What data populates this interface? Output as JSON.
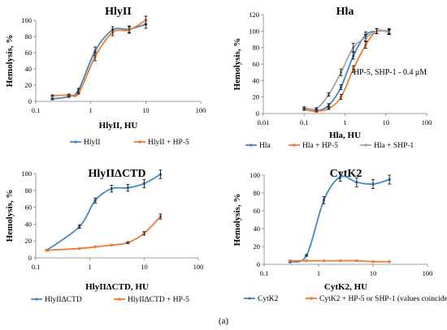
{
  "caption": "(a)",
  "colors": {
    "blue": "#4a86c7",
    "orange": "#ed7d31",
    "gray": "#a5a5a5",
    "axis": "#7f7f7f"
  },
  "chart_data": [
    {
      "type": "line",
      "title": "HlyII",
      "xlabel": "HlyII, HU",
      "ylabel": "Hemolysis, %",
      "xscale": "log",
      "xlim": [
        0.1,
        100
      ],
      "ylim": [
        0,
        100
      ],
      "xticks": [
        "0.1",
        "1",
        "10",
        "100"
      ],
      "yticks": [
        "0",
        "20",
        "40",
        "60",
        "80",
        "100"
      ],
      "legend": "bottom",
      "series": [
        {
          "name": "HlyII",
          "color": "blue",
          "x": [
            0.2,
            0.4,
            0.6,
            1.2,
            2.5,
            5,
            10
          ],
          "y": [
            3,
            6,
            14,
            62,
            88,
            89,
            95
          ],
          "err": [
            1,
            1,
            2,
            5,
            4,
            4,
            5
          ]
        },
        {
          "name": "HlyII + HP-5",
          "color": "orange",
          "x": [
            0.2,
            0.4,
            0.6,
            1.2,
            2.5,
            5,
            10
          ],
          "y": [
            7,
            8,
            10,
            55,
            85,
            88,
            100
          ],
          "err": [
            1,
            1,
            1,
            5,
            4,
            4,
            5
          ]
        }
      ]
    },
    {
      "type": "line",
      "title": "Hla",
      "xlabel": "Hla, HU",
      "ylabel": "Hemolysis, %",
      "xscale": "log",
      "xlim": [
        0.01,
        100
      ],
      "ylim": [
        0,
        120
      ],
      "xticks": [
        "0.01",
        "0.1",
        "1",
        "10",
        "100"
      ],
      "yticks": [
        "0",
        "20",
        "40",
        "60",
        "80",
        "100",
        "120"
      ],
      "annotation": "HP-5, SHP-1 - 0.4 μM",
      "legend": "bottom",
      "series": [
        {
          "name": "Hla",
          "color": "blue",
          "x": [
            0.1,
            0.2,
            0.4,
            0.8,
            1.6,
            3.2,
            6,
            12
          ],
          "y": [
            5,
            3,
            10,
            32,
            70,
            95,
            100,
            100
          ],
          "err": [
            1,
            1,
            2,
            3,
            4,
            4,
            3,
            3
          ]
        },
        {
          "name": "Hla + HP-5",
          "color": "orange",
          "x": [
            0.1,
            0.2,
            0.4,
            0.8,
            1.6,
            3.2,
            6,
            12
          ],
          "y": [
            5,
            3,
            6,
            20,
            54,
            83,
            100,
            99
          ],
          "err": [
            1,
            1,
            1,
            3,
            4,
            4,
            3,
            3
          ]
        },
        {
          "name": "Hla + SHP-1",
          "color": "gray",
          "x": [
            0.1,
            0.2,
            0.4,
            0.8,
            1.6,
            3.2,
            6,
            12
          ],
          "y": [
            7,
            6,
            23,
            50,
            80,
            92,
            100,
            99
          ],
          "err": [
            1,
            1,
            2,
            4,
            5,
            4,
            3,
            3
          ]
        }
      ]
    },
    {
      "type": "line",
      "title": "HlyIIΔCTD",
      "xlabel": "HlyIIΔCTD, HU",
      "ylabel": "Hemolysis, %",
      "xscale": "log",
      "xlim": [
        0.1,
        100
      ],
      "ylim": [
        0,
        100
      ],
      "xticks": [
        "0.1",
        "1",
        "10",
        "100"
      ],
      "yticks": [
        "0",
        "20",
        "40",
        "60",
        "80",
        "100"
      ],
      "legend": "bottom",
      "series": [
        {
          "name": "HlyIIΔCTD",
          "color": "blue",
          "x": [
            0.16,
            0.64,
            1.25,
            2.5,
            5,
            10,
            20
          ],
          "y": [
            9,
            37,
            68,
            82,
            83,
            88,
            99
          ],
          "err": [
            1,
            2,
            3,
            4,
            4,
            5,
            5
          ]
        },
        {
          "name": "HlyIIΔCTD + HP-5",
          "color": "orange",
          "x": [
            0.16,
            0.64,
            1.25,
            2.5,
            5,
            10,
            20
          ],
          "y": [
            9,
            11,
            13,
            15,
            18,
            29,
            49
          ],
          "err": [
            0,
            0,
            0,
            0,
            1,
            2,
            3
          ]
        }
      ]
    },
    {
      "type": "line",
      "title": "CytK2",
      "xlabel": "CytK2, HU",
      "ylabel": "Hemolysis, %",
      "xscale": "log",
      "xlim": [
        0.1,
        100
      ],
      "ylim": [
        0,
        100
      ],
      "xticks": [
        "0.1",
        "1",
        "10",
        "100"
      ],
      "yticks": [
        "0",
        "20",
        "40",
        "60",
        "80",
        "100"
      ],
      "legend": "bottom",
      "series": [
        {
          "name": "CytK2",
          "color": "blue",
          "x": [
            0.3,
            0.6,
            1.25,
            2.5,
            5,
            10,
            20
          ],
          "y": [
            3,
            10,
            72,
            98,
            92,
            90,
            95
          ],
          "err": [
            1,
            1,
            4,
            5,
            5,
            5,
            5
          ]
        },
        {
          "name": "CytK2 + HP-5 or SHP-1 (values coincided)",
          "color": "orange",
          "x": [
            0.3,
            0.6,
            1.25,
            2.5,
            5,
            10,
            20
          ],
          "y": [
            4,
            4,
            4,
            4,
            4,
            3,
            3
          ],
          "err": [
            0,
            0,
            0,
            0,
            0,
            0,
            0
          ]
        }
      ]
    }
  ]
}
